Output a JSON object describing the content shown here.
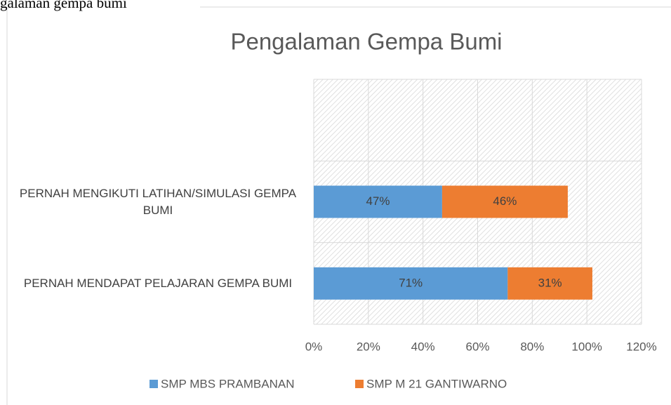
{
  "caption": "galaman gempa bumi",
  "chart_data": {
    "type": "stacked_bar_horizontal",
    "title": "Pengalaman Gempa Bumi",
    "categories": [
      null,
      "PERNAH MENGIKUTI LATIHAN/SIMULASI GEMPA BUMI",
      "PERNAH MENDAPAT PELAJARAN GEMPA BUMI"
    ],
    "series": [
      {
        "name": "SMP MBS PRAMBANAN",
        "color": "#5b9bd5",
        "values": [
          null,
          47,
          71
        ],
        "value_labels": [
          null,
          "47%",
          "71%"
        ]
      },
      {
        "name": "SMP M 21 GANTIWARNO",
        "color": "#ed7d31",
        "values": [
          null,
          46,
          31
        ],
        "value_labels": [
          null,
          "46%",
          "31%"
        ]
      }
    ],
    "xlim": [
      0,
      120
    ],
    "xticks": [
      {
        "value": 0,
        "label": "0%"
      },
      {
        "value": 20,
        "label": "20%"
      },
      {
        "value": 40,
        "label": "40%"
      },
      {
        "value": 60,
        "label": "60%"
      },
      {
        "value": 80,
        "label": "80%"
      },
      {
        "value": 100,
        "label": "100%"
      },
      {
        "value": 120,
        "label": "120%"
      }
    ],
    "grid": true,
    "legend": "bottom"
  }
}
